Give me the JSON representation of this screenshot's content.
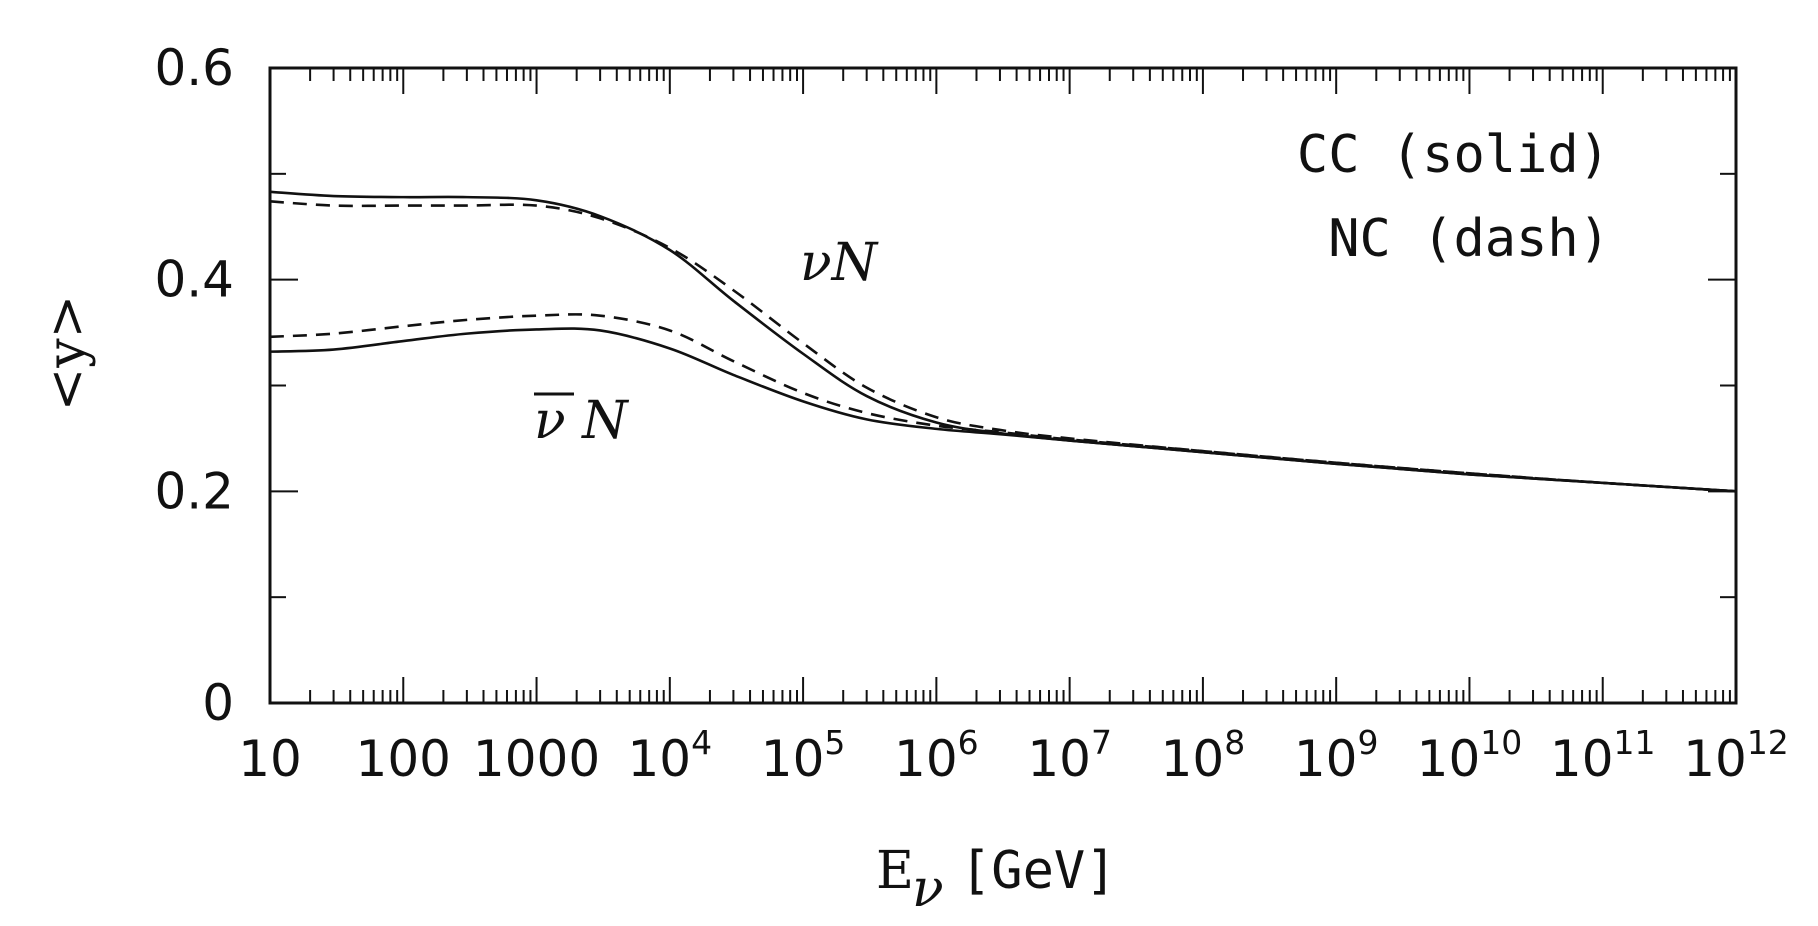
{
  "chart_data": {
    "type": "line",
    "x_scale": "log",
    "xlabel": "E",
    "xlabel_subscript": "ν",
    "xlabel_unit": "[GeV]",
    "ylabel": "<y>",
    "xlim": [
      10,
      1000000000000
    ],
    "ylim": [
      0,
      0.6
    ],
    "grid": false,
    "x_ticks": [
      {
        "value": 10,
        "base": "10",
        "exp": ""
      },
      {
        "value": 100,
        "base": "100",
        "exp": ""
      },
      {
        "value": 1000,
        "base": "1000",
        "exp": ""
      },
      {
        "value": 10000,
        "base": "10",
        "exp": "4"
      },
      {
        "value": 100000,
        "base": "10",
        "exp": "5"
      },
      {
        "value": 1000000,
        "base": "10",
        "exp": "6"
      },
      {
        "value": 10000000,
        "base": "10",
        "exp": "7"
      },
      {
        "value": 100000000,
        "base": "10",
        "exp": "8"
      },
      {
        "value": 1000000000,
        "base": "10",
        "exp": "9"
      },
      {
        "value": 10000000000,
        "base": "10",
        "exp": "10"
      },
      {
        "value": 100000000000,
        "base": "10",
        "exp": "11"
      },
      {
        "value": 1000000000000,
        "base": "10",
        "exp": "12"
      }
    ],
    "y_ticks": [
      {
        "value": 0,
        "label": "0"
      },
      {
        "value": 0.2,
        "label": "0.2"
      },
      {
        "value": 0.4,
        "label": "0.4"
      },
      {
        "value": 0.6,
        "label": "0.6"
      }
    ],
    "legend": {
      "placement": "top-right",
      "lines": [
        "CC (solid)",
        "NC (dash)"
      ]
    },
    "annotations": [
      {
        "text": "νN",
        "x": 200000,
        "y": 0.41
      },
      {
        "text": "ν N",
        "overline": true,
        "x": 3000,
        "y": 0.26
      }
    ],
    "series": [
      {
        "style": "solid",
        "x": [
          10,
          30,
          100,
          300,
          1000,
          3000,
          10000,
          30000,
          100000,
          300000,
          1000000,
          3000000,
          10000000,
          100000000,
          1000000000,
          10000000000,
          100000000000,
          1000000000000
        ],
        "y": [
          0.483,
          0.479,
          0.478,
          0.478,
          0.475,
          0.46,
          0.428,
          0.38,
          0.33,
          0.29,
          0.265,
          0.255,
          0.248,
          0.237,
          0.226,
          0.216,
          0.208,
          0.2
        ]
      },
      {
        "style": "dashed",
        "x": [
          10,
          30,
          100,
          300,
          1000,
          3000,
          10000,
          30000,
          100000,
          300000,
          1000000,
          3000000,
          10000000,
          100000000,
          1000000000,
          10000000000,
          100000000000,
          1000000000000
        ],
        "y": [
          0.474,
          0.47,
          0.47,
          0.47,
          0.47,
          0.458,
          0.43,
          0.39,
          0.34,
          0.298,
          0.27,
          0.258,
          0.25,
          0.238,
          0.227,
          0.217,
          0.208,
          0.2
        ]
      },
      {
        "style": "solid",
        "x": [
          10,
          30,
          100,
          300,
          1000,
          3000,
          10000,
          30000,
          100000,
          300000,
          1000000,
          3000000,
          10000000,
          100000000,
          1000000000,
          10000000000,
          100000000000,
          1000000000000
        ],
        "y": [
          0.332,
          0.334,
          0.342,
          0.349,
          0.353,
          0.352,
          0.335,
          0.31,
          0.285,
          0.268,
          0.259,
          0.254,
          0.248,
          0.237,
          0.226,
          0.216,
          0.208,
          0.2
        ]
      },
      {
        "style": "dashed",
        "x": [
          10,
          30,
          100,
          300,
          1000,
          3000,
          10000,
          30000,
          100000,
          300000,
          1000000,
          3000000,
          10000000,
          100000000,
          1000000000,
          10000000000,
          100000000000,
          1000000000000
        ],
        "y": [
          0.346,
          0.349,
          0.356,
          0.362,
          0.366,
          0.366,
          0.352,
          0.323,
          0.293,
          0.274,
          0.262,
          0.256,
          0.249,
          0.238,
          0.227,
          0.217,
          0.208,
          0.2
        ]
      }
    ]
  }
}
